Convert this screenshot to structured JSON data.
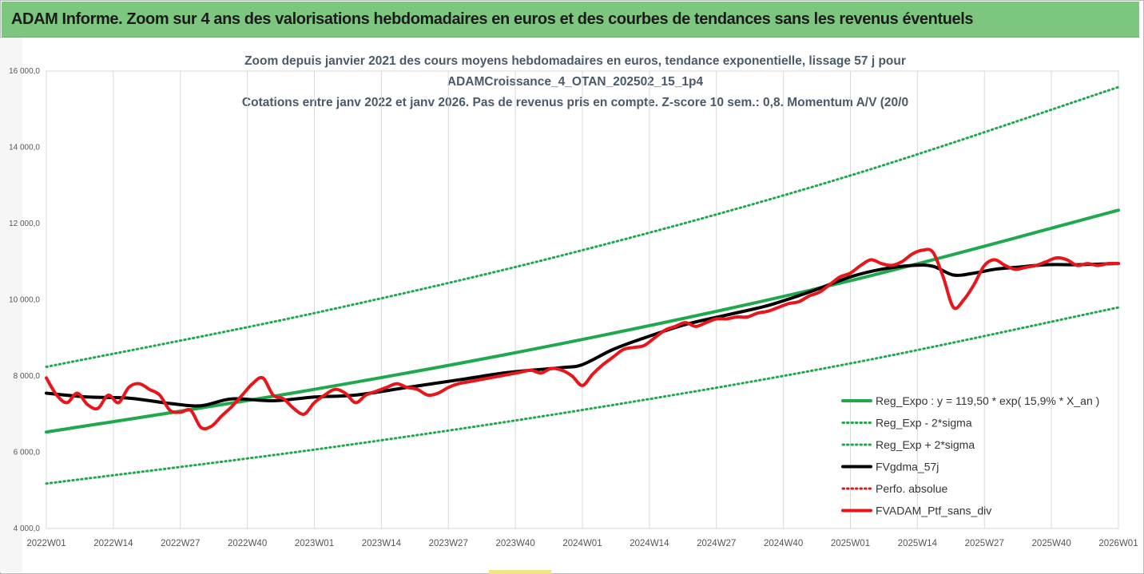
{
  "banner": {
    "title": "ADAM Informe. Zoom sur 4 ans des valorisations hebdomadaires en euros et des courbes de tendances sans les revenus éventuels"
  },
  "chart_data": {
    "type": "line",
    "title_lines": [
      "Zoom depuis janvier 2021 des cours moyens hebdomadaires  en euros, tendance exponentielle, lissage 57 j pour",
      "ADAMCroissance_4_OTAN_202502_15_1p4",
      "Cotations entre janv 2022 et janv 2026. Pas de revenus pris en compte. Z-score 10 sem.: 0,8. Momentum A/V (20/0"
    ],
    "x_ticks": [
      "2022W01",
      "2022W14",
      "2022W27",
      "2022W40",
      "2023W01",
      "2023W14",
      "2023W27",
      "2023W40",
      "2024W01",
      "2024W14",
      "2024W27",
      "2024W40",
      "2025W01",
      "2025W14",
      "2025W27",
      "2025W40",
      "2026W01"
    ],
    "x_range_weeks": [
      0,
      208
    ],
    "ylim": [
      4000,
      16000
    ],
    "y_ticks": [
      4000,
      6000,
      8000,
      10000,
      12000,
      14000,
      16000
    ],
    "y_tick_labels": [
      "4 000,0",
      "6 000,0",
      "8 000,0",
      "10 000,0",
      "12 000,0",
      "14 000,0",
      "16 000,0"
    ],
    "grid": "vertical",
    "legend_position": "bottom-right",
    "series": [
      {
        "name": "Reg_Expo : y = 119,50 * exp( 15,9% *  X_an )",
        "color": "#1fa94c",
        "style": "solid",
        "x": [
          0,
          52,
          104,
          156,
          208
        ],
        "values": [
          6530,
          7650,
          8960,
          10500,
          12350
        ]
      },
      {
        "name": "Reg_Exp - 2*sigma",
        "color": "#1fa94c",
        "style": "dotted",
        "x": [
          0,
          52,
          104,
          156,
          208
        ],
        "values": [
          5180,
          6070,
          7110,
          8330,
          9800
        ]
      },
      {
        "name": "Reg_Exp + 2*sigma",
        "color": "#1fa94c",
        "style": "dotted",
        "x": [
          0,
          52,
          104,
          156,
          208
        ],
        "values": [
          8240,
          9650,
          11300,
          13260,
          15580
        ]
      },
      {
        "name": "FVgdma_57j",
        "color": "#000000",
        "style": "solid",
        "x": [
          0,
          8,
          16,
          24,
          30,
          36,
          44,
          52,
          60,
          70,
          80,
          90,
          100,
          104,
          110,
          116,
          124,
          132,
          140,
          148,
          156,
          162,
          168,
          172,
          176,
          180,
          184,
          188,
          194,
          200,
          208
        ],
        "values": [
          7550,
          7450,
          7420,
          7280,
          7220,
          7400,
          7350,
          7450,
          7500,
          7700,
          7900,
          8100,
          8220,
          8300,
          8700,
          9000,
          9350,
          9600,
          9850,
          10200,
          10600,
          10800,
          10900,
          10880,
          10650,
          10700,
          10800,
          10850,
          10920,
          10920,
          10950
        ]
      },
      {
        "name": "Perfo. absolue",
        "color": "#d7191c",
        "style": "dotted",
        "x": [],
        "values": []
      },
      {
        "name": "FVADAM_Ptf_sans_div",
        "color": "#e8161b",
        "style": "solid",
        "x": [
          0,
          2,
          4,
          6,
          8,
          10,
          12,
          14,
          16,
          18,
          20,
          22,
          24,
          26,
          28,
          30,
          32,
          34,
          36,
          38,
          40,
          42,
          44,
          46,
          48,
          50,
          52,
          54,
          56,
          58,
          60,
          62,
          64,
          66,
          68,
          70,
          72,
          74,
          76,
          78,
          80,
          82,
          84,
          86,
          88,
          90,
          92,
          94,
          96,
          98,
          100,
          102,
          104,
          106,
          108,
          110,
          112,
          114,
          116,
          118,
          120,
          122,
          124,
          126,
          128,
          130,
          132,
          134,
          136,
          138,
          140,
          142,
          144,
          146,
          148,
          150,
          152,
          154,
          156,
          158,
          160,
          162,
          164,
          166,
          168,
          170,
          172,
          174,
          176,
          178,
          180,
          182,
          184,
          186,
          188,
          190,
          192,
          194,
          196,
          198,
          200,
          202,
          204,
          206,
          208
        ],
        "values": [
          7950,
          7500,
          7300,
          7550,
          7250,
          7150,
          7500,
          7300,
          7700,
          7800,
          7650,
          7500,
          7100,
          7050,
          7100,
          6650,
          6680,
          6950,
          7200,
          7500,
          7800,
          7950,
          7500,
          7400,
          7150,
          7000,
          7300,
          7500,
          7650,
          7550,
          7300,
          7500,
          7600,
          7700,
          7800,
          7700,
          7650,
          7500,
          7550,
          7700,
          7800,
          7850,
          7900,
          7950,
          8000,
          8050,
          8100,
          8150,
          8080,
          8200,
          8150,
          8000,
          7750,
          8050,
          8300,
          8500,
          8700,
          8750,
          8800,
          9000,
          9200,
          9300,
          9400,
          9300,
          9400,
          9500,
          9500,
          9550,
          9550,
          9650,
          9700,
          9800,
          9900,
          9950,
          10100,
          10200,
          10400,
          10600,
          10700,
          10900,
          11050,
          10950,
          10900,
          11000,
          11200,
          11300,
          11250,
          10600,
          9800,
          10000,
          10400,
          10900,
          11050,
          10900,
          10800,
          10850,
          10900,
          11000,
          11100,
          11050,
          10900,
          10950,
          10900,
          10950,
          10950
        ]
      }
    ]
  }
}
